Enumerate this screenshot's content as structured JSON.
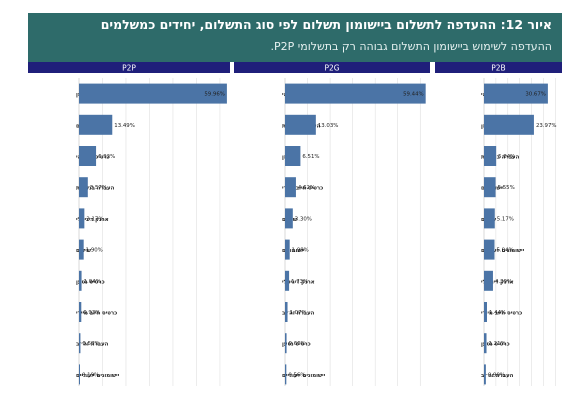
{
  "title": "איור 12: ההעדפה לתשלום ביישומון תשלום לפי סוג התשלום, יחידים כמשלמים",
  "subtitle": "ההעדפה לשימוש ביישומון התשלום גבוהה רק בתשלומי P2P.",
  "colors": {
    "header_bg": "#2e6b6a",
    "panel_header": "#1f1f7a",
    "bar": "#4b74a6"
  },
  "chart_data": [
    {
      "type": "bar",
      "orientation": "horizontal",
      "title": "P2P",
      "categories": [
        "מזומן",
        "יישומונים",
        "כרטיס אשראי",
        "העברה בנקאית",
        "ארנק דיגיטלי",
        "שיקים",
        "כרטיס נטען",
        "כרטיס חיוב מיידי",
        "העברת זה״ב",
        "יישומונים ייעודיים"
      ],
      "values": [
        59.96,
        13.49,
        6.92,
        3.57,
        2.17,
        1.9,
        1.04,
        0.93,
        0.58,
        0.19
      ],
      "value_labels": [
        "59.96%",
        "13.49%",
        "6.92%",
        "3.57%",
        "2.17%",
        "1.90%",
        "1.04%",
        "0.93%",
        "0.58%",
        "0.19%"
      ],
      "xlim": [
        0,
        60
      ]
    },
    {
      "type": "bar",
      "orientation": "horizontal",
      "title": "P2G",
      "categories": [
        "כרטיס אשראי",
        "העברה בנקאית",
        "מזומן",
        "כרטיס חיוב מיידי",
        "שיקים",
        "יישומונים",
        "ארנק דיגיטלי",
        "העברת זה״ב",
        "כרטיס נטען",
        "יישומונים ייעודיים"
      ],
      "values": [
        59.44,
        13.03,
        6.51,
        4.62,
        3.3,
        1.98,
        1.73,
        1.07,
        0.66,
        0.56
      ],
      "value_labels": [
        "59.44%",
        "13.03%",
        "6.51%",
        "4.62%",
        "3.30%",
        "1.98%",
        "1.73%",
        "1.07%",
        "0.66%",
        "0.56%"
      ],
      "xlim": [
        0,
        60
      ]
    },
    {
      "type": "bar",
      "orientation": "horizontal",
      "title": "P2B",
      "categories": [
        "כרטיס אשראי",
        "מזומן",
        "העברה בנקאית",
        "יישומונים",
        "שיקים",
        "יישומונים ייעודיים",
        "ארנק דיגיטלי",
        "כרטיס חיוב מיידי",
        "כרטיס נטען",
        "העברת זה״ב"
      ],
      "values": [
        30.67,
        23.97,
        5.84,
        5.55,
        5.17,
        5.04,
        4.3,
        1.44,
        1.21,
        0.9
      ],
      "value_labels": [
        "30.67%",
        "23.97%",
        "5.84%",
        "5.55%",
        "5.17%",
        "5.04%",
        "4.30%",
        "1.44%",
        "1.21%",
        "0.90%"
      ],
      "xlim": [
        0,
        36
      ]
    }
  ]
}
